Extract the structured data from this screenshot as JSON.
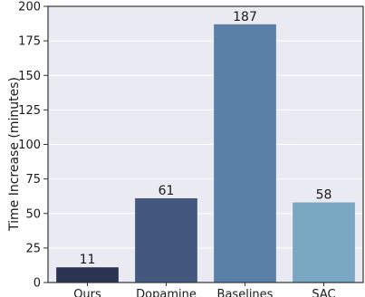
{
  "chart_data": {
    "type": "bar",
    "categories": [
      "Ours",
      "Dopamine",
      "Baselines",
      "SAC"
    ],
    "values": [
      11,
      61,
      187,
      58
    ],
    "data_labels": [
      "11",
      "61",
      "187",
      "58"
    ],
    "colors": [
      "#2c3452",
      "#44587f",
      "#5b80a8",
      "#7aa7c2"
    ],
    "title": "",
    "xlabel": "",
    "ylabel": "Time Increase (minutes)",
    "ylim": [
      0,
      200
    ],
    "yticks": [
      0,
      25,
      50,
      75,
      100,
      125,
      150,
      175,
      200
    ],
    "ytick_labels": [
      "0",
      "25",
      "50",
      "75",
      "100",
      "125",
      "150",
      "175",
      "200"
    ],
    "grid": true,
    "background": "#eaeaf2"
  }
}
